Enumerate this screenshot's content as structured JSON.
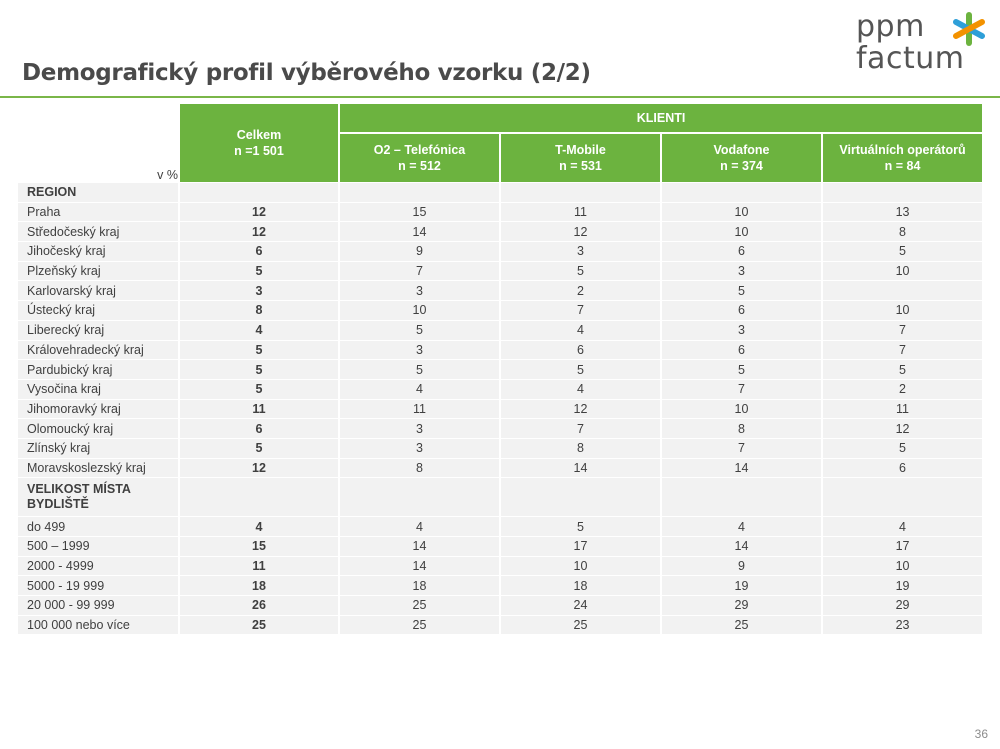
{
  "title": "Demografický profil výběrového vzorku (2/2)",
  "logo": {
    "top": "ppm",
    "bottom": "factum",
    "star_colors": [
      "#6cb33f",
      "#2e9fd8",
      "#f39200",
      "#e94e1b"
    ]
  },
  "table": {
    "unit": "v %",
    "total_header": {
      "label": "Celkem",
      "n": "n =1 501"
    },
    "group_header": "KLIENTI",
    "columns": [
      {
        "label": "O2 – Telefónica",
        "n": "n = 512"
      },
      {
        "label": "T-Mobile",
        "n": "n = 531"
      },
      {
        "label": "Vodafone",
        "n": "n = 374"
      },
      {
        "label": "Virtuálních operátorů",
        "n": "n = 84"
      }
    ],
    "rows": [
      {
        "label": "REGION",
        "total": "",
        "values": [
          "",
          "",
          "",
          ""
        ]
      },
      {
        "label": "Praha",
        "total": "12",
        "values": [
          "15",
          "11",
          "10",
          "13"
        ]
      },
      {
        "label": "Středočeský kraj",
        "total": "12",
        "values": [
          "14",
          "12",
          "10",
          "8"
        ]
      },
      {
        "label": "Jihočeský kraj",
        "total": "6",
        "values": [
          "9",
          "3",
          "6",
          "5"
        ]
      },
      {
        "label": "Plzeňský kraj",
        "total": "5",
        "values": [
          "7",
          "5",
          "3",
          "10"
        ]
      },
      {
        "label": "Karlovarský kraj",
        "total": "3",
        "values": [
          "3",
          "2",
          "5",
          ""
        ]
      },
      {
        "label": "Ústecký kraj",
        "total": "8",
        "values": [
          "10",
          "7",
          "6",
          "10"
        ]
      },
      {
        "label": "Liberecký kraj",
        "total": "4",
        "values": [
          "5",
          "4",
          "3",
          "7"
        ]
      },
      {
        "label": "Královehradecký kraj",
        "total": "5",
        "values": [
          "3",
          "6",
          "6",
          "7"
        ]
      },
      {
        "label": "Pardubický kraj",
        "total": "5",
        "values": [
          "5",
          "5",
          "5",
          "5"
        ]
      },
      {
        "label": "Vysočina kraj",
        "total": "5",
        "values": [
          "4",
          "4",
          "7",
          "2"
        ]
      },
      {
        "label": "Jihomoravký kraj",
        "total": "11",
        "values": [
          "11",
          "12",
          "10",
          "11"
        ]
      },
      {
        "label": "Olomoucký kraj",
        "total": "6",
        "values": [
          "3",
          "7",
          "8",
          "12"
        ]
      },
      {
        "label": "Zlínský kraj",
        "total": "5",
        "values": [
          "3",
          "8",
          "7",
          "5"
        ]
      },
      {
        "label": "Moravskoslezský kraj",
        "total": "12",
        "values": [
          "8",
          "14",
          "14",
          "6"
        ]
      },
      {
        "label": "VELIKOST MÍSTA BYDLIŠTĚ",
        "total": "",
        "values": [
          "",
          "",
          "",
          ""
        ]
      },
      {
        "label": "do 499",
        "total": "4",
        "values": [
          "4",
          "5",
          "4",
          "4"
        ]
      },
      {
        "label": "500 – 1999",
        "total": "15",
        "values": [
          "14",
          "17",
          "14",
          "17"
        ]
      },
      {
        "label": "2000 - 4999",
        "total": "11",
        "values": [
          "14",
          "10",
          "9",
          "10"
        ]
      },
      {
        "label": "5000 - 19 999",
        "total": "18",
        "values": [
          "18",
          "18",
          "19",
          "19"
        ]
      },
      {
        "label": "20 000 - 99 999",
        "total": "26",
        "values": [
          "25",
          "24",
          "29",
          "29"
        ]
      },
      {
        "label": "100 000  nebo více",
        "total": "25",
        "values": [
          "25",
          "25",
          "25",
          "23"
        ]
      }
    ]
  },
  "page_number": "36"
}
